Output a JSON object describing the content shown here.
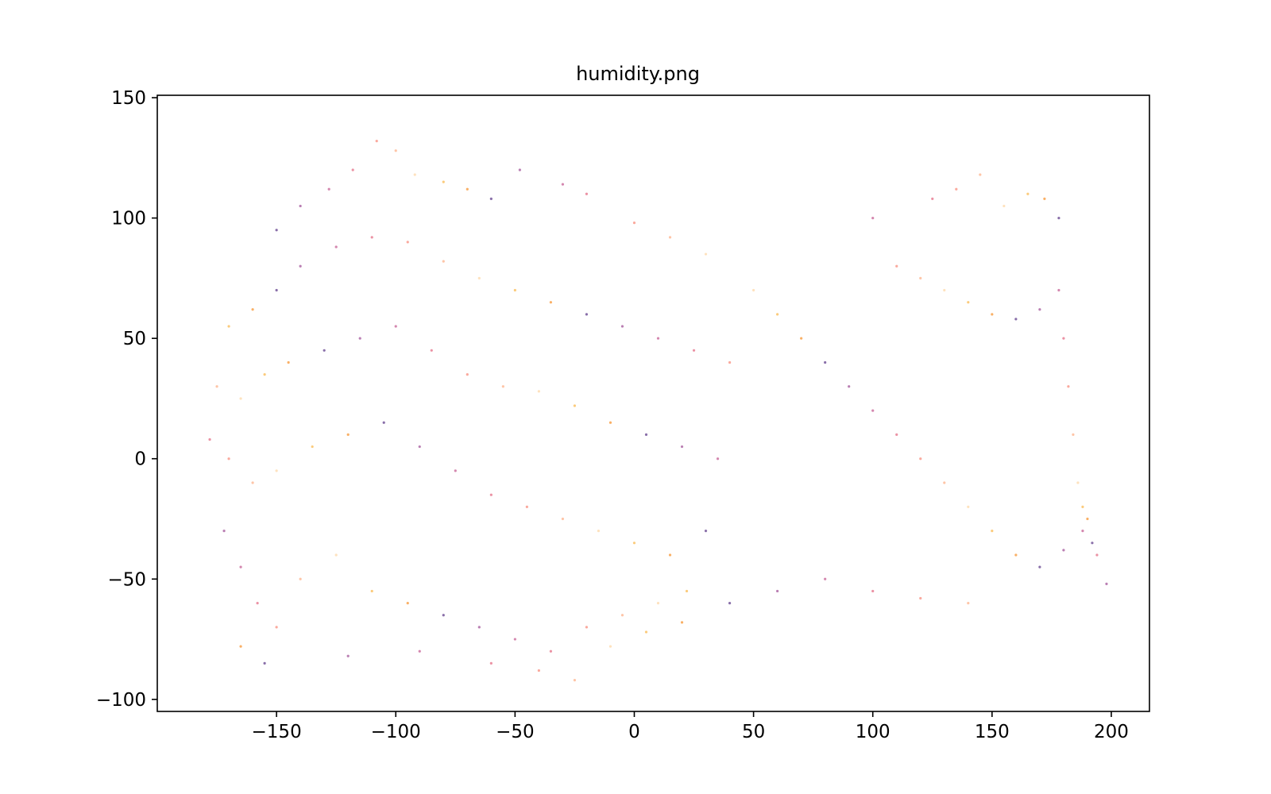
{
  "chart_data": {
    "type": "scatter",
    "title": "humidity.png",
    "xlabel": "",
    "ylabel": "",
    "xlim": [
      -200,
      216
    ],
    "ylim": [
      -105,
      151
    ],
    "xticks": [
      -150,
      -100,
      -50,
      0,
      50,
      100,
      150,
      200
    ],
    "yticks": [
      -100,
      -50,
      0,
      50,
      100,
      150
    ],
    "xtick_labels": [
      "−150",
      "−100",
      "−50",
      "0",
      "50",
      "100",
      "150",
      "200"
    ],
    "ytick_labels": [
      "−100",
      "−50",
      "0",
      "50",
      "100",
      "150"
    ],
    "grid": false,
    "legend": "none",
    "marker_alpha": 0.6,
    "colors": [
      "#3b0f70",
      "#8c2981",
      "#b73779",
      "#de4968",
      "#f7705c",
      "#fe9f6d",
      "#fecf92",
      "#f9a825",
      "#f57c00"
    ],
    "series": [
      {
        "points": [
          [
            -150,
            95
          ],
          [
            -140,
            105
          ],
          [
            -128,
            112
          ],
          [
            -118,
            120
          ],
          [
            -108,
            132
          ],
          [
            -100,
            128
          ],
          [
            -92,
            118
          ],
          [
            -80,
            115
          ],
          [
            -70,
            112
          ],
          [
            -60,
            108
          ],
          [
            -48,
            120
          ],
          [
            -30,
            114
          ],
          [
            -20,
            110
          ],
          [
            0,
            98
          ],
          [
            15,
            92
          ],
          [
            30,
            85
          ],
          [
            -170,
            55
          ],
          [
            -160,
            62
          ],
          [
            -150,
            70
          ],
          [
            -140,
            80
          ],
          [
            -125,
            88
          ],
          [
            -110,
            92
          ],
          [
            -95,
            90
          ],
          [
            -80,
            82
          ],
          [
            -65,
            75
          ],
          [
            -50,
            70
          ],
          [
            -35,
            65
          ],
          [
            -20,
            60
          ],
          [
            -5,
            55
          ],
          [
            10,
            50
          ],
          [
            25,
            45
          ],
          [
            40,
            40
          ],
          [
            -175,
            30
          ],
          [
            -165,
            25
          ],
          [
            -155,
            35
          ],
          [
            -145,
            40
          ],
          [
            -130,
            45
          ],
          [
            -115,
            50
          ],
          [
            -100,
            55
          ],
          [
            -85,
            45
          ],
          [
            -70,
            35
          ],
          [
            -55,
            30
          ],
          [
            -40,
            28
          ],
          [
            -25,
            22
          ],
          [
            -10,
            15
          ],
          [
            5,
            10
          ],
          [
            20,
            5
          ],
          [
            35,
            0
          ],
          [
            -178,
            8
          ],
          [
            -170,
            0
          ],
          [
            -160,
            -10
          ],
          [
            -150,
            -5
          ],
          [
            -135,
            5
          ],
          [
            -120,
            10
          ],
          [
            -105,
            15
          ],
          [
            -90,
            5
          ],
          [
            -75,
            -5
          ],
          [
            -60,
            -15
          ],
          [
            -45,
            -20
          ],
          [
            -30,
            -25
          ],
          [
            -15,
            -30
          ],
          [
            0,
            -35
          ],
          [
            15,
            -40
          ],
          [
            30,
            -30
          ],
          [
            -172,
            -30
          ],
          [
            -165,
            -45
          ],
          [
            -158,
            -60
          ],
          [
            -150,
            -70
          ],
          [
            -140,
            -50
          ],
          [
            -125,
            -40
          ],
          [
            -110,
            -55
          ],
          [
            -95,
            -60
          ],
          [
            -80,
            -65
          ],
          [
            -65,
            -70
          ],
          [
            -50,
            -75
          ],
          [
            -35,
            -80
          ],
          [
            -20,
            -70
          ],
          [
            -5,
            -65
          ],
          [
            10,
            -60
          ],
          [
            22,
            -55
          ],
          [
            -165,
            -78
          ],
          [
            -155,
            -85
          ],
          [
            -120,
            -82
          ],
          [
            -90,
            -80
          ],
          [
            -60,
            -85
          ],
          [
            -40,
            -88
          ],
          [
            -25,
            -92
          ],
          [
            -10,
            -78
          ],
          [
            5,
            -72
          ],
          [
            20,
            -68
          ],
          [
            40,
            -60
          ],
          [
            60,
            -55
          ],
          [
            80,
            -50
          ],
          [
            100,
            -55
          ],
          [
            120,
            -58
          ],
          [
            140,
            -60
          ],
          [
            50,
            70
          ],
          [
            60,
            60
          ],
          [
            70,
            50
          ],
          [
            80,
            40
          ],
          [
            90,
            30
          ],
          [
            100,
            20
          ],
          [
            110,
            10
          ],
          [
            120,
            0
          ],
          [
            130,
            -10
          ],
          [
            140,
            -20
          ],
          [
            150,
            -30
          ],
          [
            160,
            -40
          ],
          [
            170,
            -45
          ],
          [
            180,
            -38
          ],
          [
            188,
            -30
          ],
          [
            194,
            -40
          ],
          [
            110,
            80
          ],
          [
            120,
            75
          ],
          [
            130,
            70
          ],
          [
            140,
            65
          ],
          [
            150,
            60
          ],
          [
            160,
            58
          ],
          [
            170,
            62
          ],
          [
            178,
            70
          ],
          [
            180,
            50
          ],
          [
            182,
            30
          ],
          [
            184,
            10
          ],
          [
            186,
            -10
          ],
          [
            188,
            -20
          ],
          [
            190,
            -25
          ],
          [
            192,
            -35
          ],
          [
            198,
            -52
          ],
          [
            100,
            100
          ],
          [
            125,
            108
          ],
          [
            135,
            112
          ],
          [
            145,
            118
          ],
          [
            155,
            105
          ],
          [
            165,
            110
          ],
          [
            172,
            108
          ],
          [
            178,
            100
          ]
        ]
      }
    ]
  }
}
